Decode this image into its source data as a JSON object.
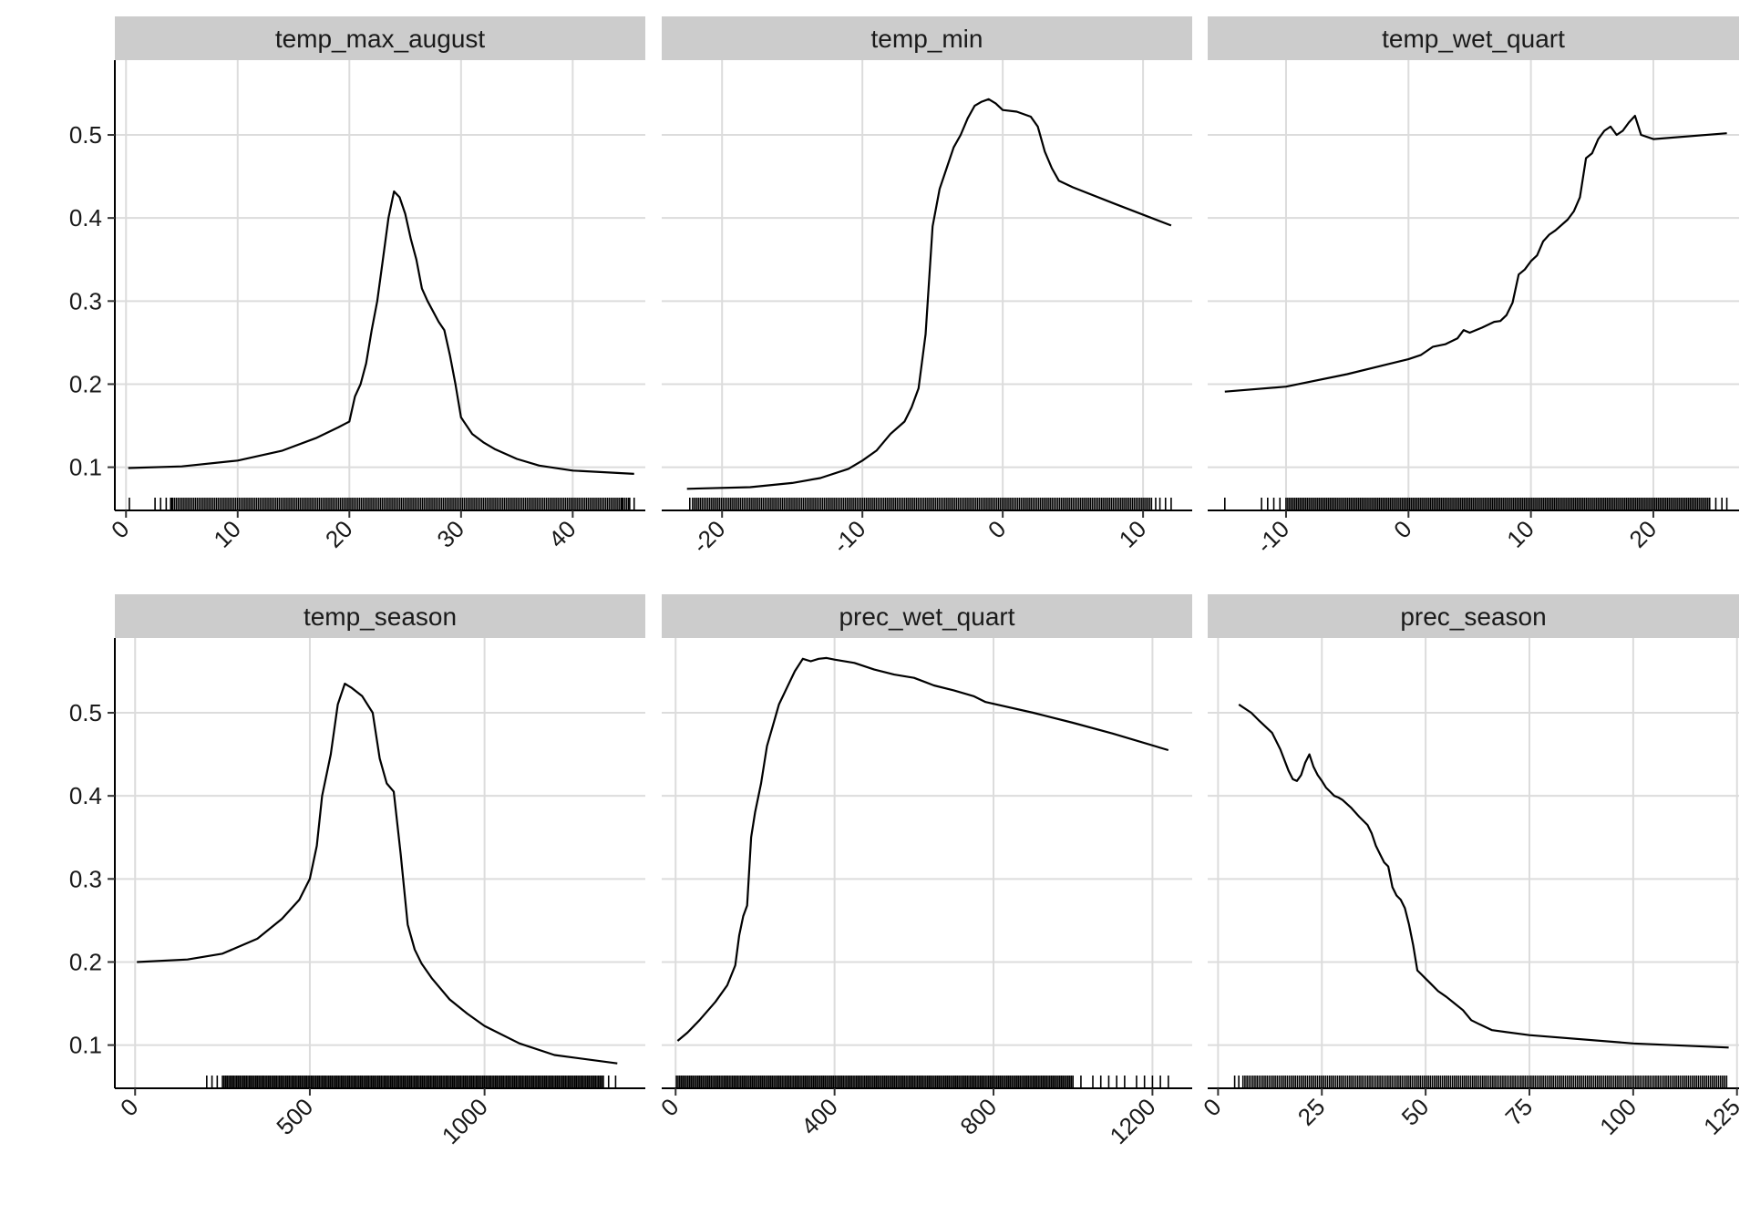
{
  "chart_data": [
    {
      "type": "line",
      "title": "temp_max_august",
      "xlim": [
        -1,
        46.5
      ],
      "ylim": [
        0.048,
        0.59
      ],
      "xticks": [
        0,
        10,
        20,
        30,
        40
      ],
      "yticks": [
        0.1,
        0.2,
        0.3,
        0.4,
        0.5
      ],
      "ytick_labels": [
        "0.1",
        "0.2",
        "0.3",
        "0.4",
        "0.5"
      ],
      "grid": true,
      "x": [
        0.2,
        5,
        10,
        14,
        17,
        19,
        20,
        20.5,
        21,
        21.5,
        22,
        22.5,
        23,
        23.5,
        24,
        24.5,
        25,
        25.5,
        26,
        26.5,
        27,
        28,
        28.5,
        29,
        29.5,
        30,
        31,
        32,
        33,
        35,
        37,
        40,
        45.5
      ],
      "y": [
        0.099,
        0.101,
        0.108,
        0.12,
        0.135,
        0.148,
        0.155,
        0.185,
        0.2,
        0.225,
        0.265,
        0.3,
        0.35,
        0.4,
        0.432,
        0.425,
        0.405,
        0.375,
        0.35,
        0.315,
        0.3,
        0.275,
        0.265,
        0.235,
        0.2,
        0.16,
        0.14,
        0.13,
        0.122,
        0.11,
        0.102,
        0.096,
        0.092
      ],
      "rug": {
        "min": 0.3,
        "max": 45.5,
        "dense_from": 4,
        "dense_to": 45,
        "sparse": [
          0.3,
          2.6,
          3.1,
          3.6,
          4.1,
          44.4,
          45.1,
          45.5
        ]
      }
    },
    {
      "type": "line",
      "title": "temp_min",
      "xlim": [
        -24.3,
        13.5
      ],
      "ylim": [
        0.048,
        0.59
      ],
      "xticks": [
        -20,
        -10,
        0,
        10
      ],
      "yticks": [
        0.1,
        0.2,
        0.3,
        0.4,
        0.5
      ],
      "ytick_labels": [
        "0.1",
        "0.2",
        "0.3",
        "0.4",
        "0.5"
      ],
      "grid": true,
      "x": [
        -22.5,
        -18,
        -15,
        -13,
        -11,
        -10,
        -9,
        -8,
        -7,
        -6.5,
        -6,
        -5.5,
        -5,
        -4.5,
        -4,
        -3.5,
        -3,
        -2.5,
        -2,
        -1.5,
        -1,
        -0.5,
        0,
        1,
        2,
        2.5,
        3,
        3.5,
        4,
        5,
        8,
        12
      ],
      "y": [
        0.074,
        0.076,
        0.081,
        0.087,
        0.098,
        0.108,
        0.12,
        0.14,
        0.155,
        0.172,
        0.195,
        0.26,
        0.39,
        0.435,
        0.46,
        0.485,
        0.5,
        0.52,
        0.535,
        0.54,
        0.543,
        0.538,
        0.53,
        0.528,
        0.522,
        0.51,
        0.48,
        0.46,
        0.445,
        0.437,
        0.417,
        0.391
      ],
      "rug": {
        "min": -22.3,
        "max": 12,
        "dense_from": -22.1,
        "dense_to": 10.6,
        "sparse": [
          -22.3,
          10.9,
          11.2,
          11.6,
          12
        ]
      }
    },
    {
      "type": "line",
      "title": "temp_wet_quart",
      "xlim": [
        -16.4,
        27
      ],
      "ylim": [
        0.048,
        0.59
      ],
      "xticks": [
        -10,
        0,
        10,
        20
      ],
      "yticks": [
        0.1,
        0.2,
        0.3,
        0.4,
        0.5
      ],
      "ytick_labels": [
        "0.1",
        "0.2",
        "0.3",
        "0.4",
        "0.5"
      ],
      "grid": true,
      "x": [
        -15,
        -10,
        -5,
        0,
        1,
        1.5,
        2,
        3,
        4,
        4.5,
        5,
        6,
        7,
        7.5,
        8,
        8.5,
        9,
        9.5,
        10,
        10.5,
        11,
        11.5,
        12,
        13,
        13.5,
        14,
        14.5,
        15,
        15.5,
        16,
        16.5,
        17,
        17.5,
        18,
        18.5,
        19,
        20,
        26
      ],
      "y": [
        0.191,
        0.197,
        0.212,
        0.23,
        0.235,
        0.24,
        0.245,
        0.248,
        0.255,
        0.265,
        0.262,
        0.268,
        0.275,
        0.276,
        0.283,
        0.298,
        0.332,
        0.338,
        0.348,
        0.355,
        0.372,
        0.38,
        0.385,
        0.398,
        0.408,
        0.425,
        0.472,
        0.478,
        0.495,
        0.505,
        0.51,
        0.5,
        0.505,
        0.515,
        0.523,
        0.5,
        0.495,
        0.502
      ],
      "rug": {
        "min": -15,
        "max": 26,
        "dense_from": -10,
        "dense_to": 24.6,
        "sparse": [
          -15,
          -12,
          -11.5,
          -11,
          -10.5,
          25.1,
          25.6,
          26
        ]
      }
    },
    {
      "type": "line",
      "title": "temp_season",
      "xlim": [
        -58,
        1460
      ],
      "ylim": [
        0.048,
        0.59
      ],
      "xticks": [
        0,
        500,
        1000
      ],
      "yticks": [
        0.1,
        0.2,
        0.3,
        0.4,
        0.5
      ],
      "ytick_labels": [
        "0.1",
        "0.2",
        "0.3",
        "0.4",
        "0.5"
      ],
      "grid": true,
      "x": [
        5,
        150,
        250,
        350,
        420,
        470,
        500,
        520,
        535,
        560,
        580,
        600,
        620,
        650,
        680,
        700,
        720,
        740,
        760,
        780,
        800,
        820,
        850,
        900,
        950,
        1000,
        1100,
        1200,
        1380
      ],
      "y": [
        0.2,
        0.203,
        0.21,
        0.228,
        0.252,
        0.275,
        0.3,
        0.34,
        0.4,
        0.45,
        0.51,
        0.535,
        0.53,
        0.52,
        0.5,
        0.445,
        0.415,
        0.405,
        0.33,
        0.245,
        0.215,
        0.198,
        0.18,
        0.155,
        0.138,
        0.123,
        0.102,
        0.088,
        0.078
      ],
      "rug": {
        "min": 205,
        "max": 1375,
        "dense_from": 250,
        "dense_to": 1340,
        "sparse": [
          205,
          220,
          235,
          1355,
          1375
        ]
      }
    },
    {
      "type": "line",
      "title": "prec_wet_quart",
      "xlim": [
        -35,
        1300
      ],
      "ylim": [
        0.048,
        0.59
      ],
      "xticks": [
        0,
        400,
        800,
        1200
      ],
      "yticks": [
        0.1,
        0.2,
        0.3,
        0.4,
        0.5
      ],
      "ytick_labels": [
        "0.1",
        "0.2",
        "0.3",
        "0.4",
        "0.5"
      ],
      "grid": true,
      "x": [
        5,
        30,
        60,
        100,
        130,
        150,
        160,
        170,
        180,
        190,
        200,
        215,
        230,
        245,
        260,
        280,
        300,
        320,
        340,
        360,
        380,
        400,
        450,
        500,
        550,
        600,
        650,
        700,
        750,
        780,
        900,
        1000,
        1100,
        1240
      ],
      "y": [
        0.105,
        0.115,
        0.13,
        0.152,
        0.172,
        0.196,
        0.232,
        0.255,
        0.268,
        0.35,
        0.38,
        0.415,
        0.46,
        0.485,
        0.51,
        0.53,
        0.55,
        0.565,
        0.562,
        0.565,
        0.566,
        0.564,
        0.56,
        0.552,
        0.546,
        0.542,
        0.533,
        0.527,
        0.52,
        0.513,
        0.5,
        0.488,
        0.475,
        0.455
      ],
      "rug": {
        "min": 2,
        "max": 1240,
        "dense_from": 2,
        "dense_to": 1000,
        "sparse": [
          1020,
          1050,
          1070,
          1090,
          1110,
          1130,
          1160,
          1180,
          1200,
          1220,
          1240
        ]
      }
    },
    {
      "type": "line",
      "title": "prec_season",
      "xlim": [
        -2.5,
        125.5
      ],
      "ylim": [
        0.048,
        0.59
      ],
      "xticks": [
        0,
        25,
        50,
        75,
        100,
        125
      ],
      "yticks": [
        0.1,
        0.2,
        0.3,
        0.4,
        0.5
      ],
      "ytick_labels": [
        "0.1",
        "0.2",
        "0.3",
        "0.4",
        "0.5"
      ],
      "grid": true,
      "x": [
        5,
        8,
        10,
        13,
        15,
        17,
        18,
        19,
        20,
        21,
        22,
        23,
        24,
        25,
        26,
        27,
        28,
        29,
        30,
        32,
        34,
        36,
        37,
        38,
        39,
        40,
        41,
        42,
        43,
        44,
        45,
        46,
        47,
        48,
        49,
        50,
        51,
        53,
        55,
        57,
        59,
        61,
        63,
        66,
        75,
        100,
        123
      ],
      "y": [
        0.51,
        0.5,
        0.49,
        0.476,
        0.456,
        0.43,
        0.42,
        0.418,
        0.425,
        0.44,
        0.45,
        0.435,
        0.425,
        0.418,
        0.41,
        0.405,
        0.4,
        0.398,
        0.395,
        0.386,
        0.375,
        0.365,
        0.355,
        0.34,
        0.33,
        0.32,
        0.315,
        0.29,
        0.28,
        0.275,
        0.265,
        0.245,
        0.22,
        0.19,
        0.185,
        0.18,
        0.175,
        0.165,
        0.158,
        0.15,
        0.142,
        0.13,
        0.125,
        0.118,
        0.112,
        0.102,
        0.097
      ],
      "rug": {
        "min": 4,
        "max": 122.5,
        "dense_from": 6,
        "dense_to": 122.5,
        "sparse": [
          4,
          5
        ]
      }
    }
  ]
}
